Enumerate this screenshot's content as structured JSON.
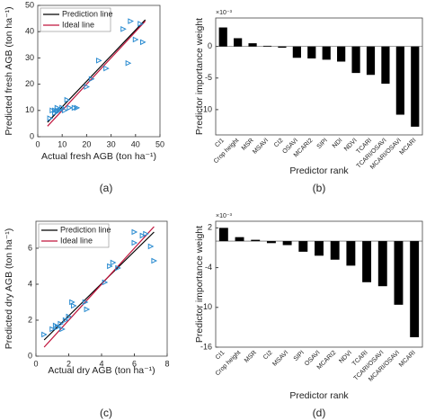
{
  "chart_data": [
    {
      "type": "scatter",
      "label": "(a)",
      "xlabel": "Actual fresh AGB (ton ha⁻¹)",
      "ylabel": "Predicted fresh AGB (ton ha⁻¹)",
      "xlim": [
        0,
        50
      ],
      "xticks": [
        0,
        10,
        20,
        30,
        40,
        50
      ],
      "ylim": [
        0,
        50
      ],
      "yticks": [
        0,
        10,
        20,
        30,
        40,
        50
      ],
      "points": {
        "color": "#2a8bd0",
        "x": [
          5,
          6,
          7,
          7,
          8,
          8,
          9,
          10,
          11,
          12,
          13,
          15,
          16,
          20,
          22,
          25,
          28,
          35,
          37,
          38,
          40,
          42,
          43
        ],
        "y": [
          7,
          10,
          10,
          9,
          11,
          10,
          10,
          11,
          10,
          14,
          11,
          11,
          11,
          19,
          22,
          29,
          26,
          41,
          28,
          44,
          37,
          43,
          36
        ]
      },
      "series": [
        {
          "name": "Prediction line",
          "color": "#000000",
          "x": [
            4,
            44
          ],
          "y": [
            5.5,
            44.5
          ]
        },
        {
          "name": "Ideal line",
          "color": "#c0143c",
          "x": [
            4,
            44
          ],
          "y": [
            4,
            44
          ]
        }
      ]
    },
    {
      "type": "bar",
      "label": "(b)",
      "xlabel": "Predictor rank",
      "ylabel": "Predictor importance weight",
      "multiplier": "×10⁻³",
      "categories": [
        "CI1",
        "Crop height",
        "MSR",
        "MSAVI",
        "CI2",
        "OSAVI",
        "MCARI2",
        "SIPI",
        "NDI",
        "NDVI",
        "TCARI",
        "TCARI/OSAVI",
        "MCARI/OSAVI",
        "MCARI"
      ],
      "values": [
        3,
        1.3,
        0.5,
        0.1,
        -0.2,
        -1.8,
        -1.9,
        -2.1,
        -2.4,
        -4.2,
        -4.5,
        -5.9,
        -10.8,
        -12.7
      ],
      "color": "#000000",
      "ylim": [
        -14,
        4.5
      ],
      "yticks": [
        0,
        -5,
        -10
      ]
    },
    {
      "type": "scatter",
      "label": "(c)",
      "xlabel": "Actual dry AGB (ton ha⁻¹)",
      "ylabel": "Predicted dry AGB (ton ha⁻¹)",
      "xlim": [
        0,
        8
      ],
      "xticks": [
        0,
        2,
        4,
        6,
        8
      ],
      "ylim": [
        0,
        7.5
      ],
      "yticks": [
        0,
        2,
        4,
        6
      ],
      "points": {
        "color": "#2a8bd0",
        "x": [
          0.5,
          1,
          1.2,
          1.3,
          1.5,
          1.6,
          1.8,
          2,
          2.2,
          2.3,
          3,
          3.1,
          4.2,
          4.5,
          4.7,
          5,
          6,
          6,
          6.5,
          6.7,
          7,
          7.2
        ],
        "y": [
          1.2,
          1.5,
          1.7,
          1.6,
          1.8,
          1.5,
          2,
          2.2,
          3,
          2.8,
          3,
          2.6,
          4.1,
          5,
          5.2,
          4.9,
          6.9,
          6.3,
          6.7,
          6.8,
          6.1,
          5.3
        ]
      },
      "series": [
        {
          "name": "Prediction line",
          "color": "#000000",
          "x": [
            0.5,
            7.2
          ],
          "y": [
            0.9,
            6.9
          ]
        },
        {
          "name": "Ideal line",
          "color": "#c0143c",
          "x": [
            0.5,
            7.2
          ],
          "y": [
            0.5,
            7.2
          ]
        }
      ]
    },
    {
      "type": "bar",
      "label": "(d)",
      "xlabel": "Predictor rank",
      "ylabel": "Predictor importance weight",
      "multiplier": "×10⁻³",
      "categories": [
        "CI1",
        "Crop height",
        "MSR",
        "CI2",
        "MSAVI",
        "SIPI",
        "OSAVI",
        "MCARI2",
        "NDVI",
        "TCARI",
        "TCARI/OSAVI",
        "MCARI/OSAVI",
        "MCARI"
      ],
      "values": [
        2,
        0.6,
        0.2,
        -0.3,
        -0.6,
        -1.6,
        -2.2,
        -2.8,
        -3.7,
        -6.2,
        -6.8,
        -9.6,
        -14.5
      ],
      "color": "#000000",
      "ylim": [
        -16,
        3
      ],
      "yticks": [
        2,
        -4,
        -10,
        -16
      ]
    }
  ]
}
